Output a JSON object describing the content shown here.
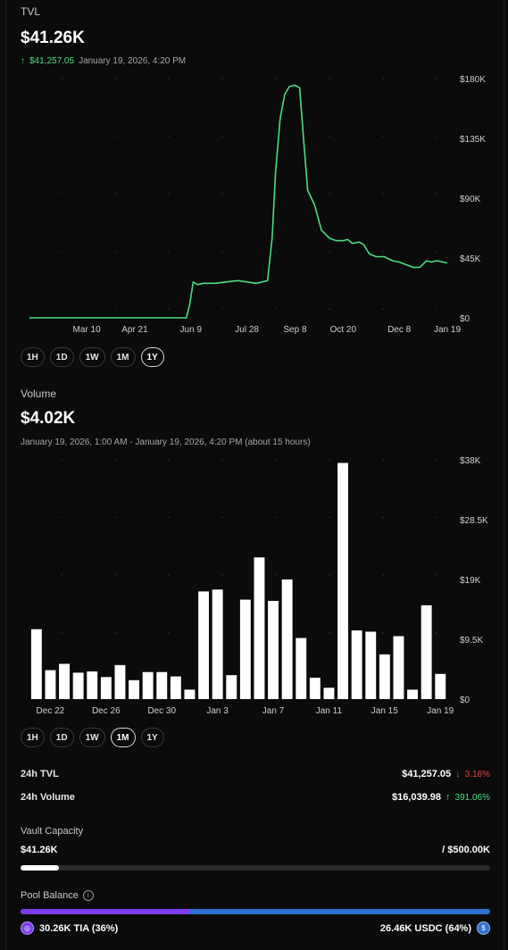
{
  "tvl": {
    "title": "TVL",
    "value": "$41.26K",
    "change_arrow": "↑",
    "change": "$41,257.05",
    "timestamp": "January 19, 2026, 4:20 PM"
  },
  "tvl_ranges": [
    {
      "label": "1H",
      "active": false
    },
    {
      "label": "1D",
      "active": false
    },
    {
      "label": "1W",
      "active": false
    },
    {
      "label": "1M",
      "active": false
    },
    {
      "label": "1Y",
      "active": true
    }
  ],
  "volume": {
    "title": "Volume",
    "value": "$4.02K",
    "period": "January 19, 2026, 1:00 AM - January 19, 2026, 4:20 PM (about 15 hours)"
  },
  "volume_ranges": [
    {
      "label": "1H",
      "active": false
    },
    {
      "label": "1D",
      "active": false
    },
    {
      "label": "1W",
      "active": false
    },
    {
      "label": "1M",
      "active": true
    },
    {
      "label": "1Y",
      "active": false
    }
  ],
  "stats": {
    "tvl_label": "24h TVL",
    "tvl_value": "$41,257.05",
    "tvl_change_arrow": "↓",
    "tvl_change": "3.16%",
    "volume_label": "24h Volume",
    "volume_value": "$16,039.98",
    "volume_change_arrow": "↑",
    "volume_change": "391.06%"
  },
  "capacity": {
    "title": "Vault Capacity",
    "current": "$41.26K",
    "max": "/ $500.00K",
    "fraction": 0.0825
  },
  "pool": {
    "title": "Pool Balance",
    "info_icon": "info-icon",
    "left_label": "30.26K TIA (36%)",
    "right_label": "26.46K USDC (64%)",
    "left_fraction": 0.36,
    "left_color": "#7c3aed",
    "right_color": "#2f6fce",
    "left_icon": "tia-token-icon",
    "right_icon": "usdc-token-icon"
  },
  "colors": {
    "accent_green": "#4ade80",
    "accent_red": "#ef4444",
    "line": "#4ade80",
    "bar": "#ffffff"
  },
  "chart_data": [
    {
      "type": "line",
      "title": "TVL",
      "x_ticks": [
        "Mar 10",
        "Apr 21",
        "Jun 9",
        "Jul 28",
        "Sep 8",
        "Oct 20",
        "Dec 8",
        "Jan 19"
      ],
      "y_ticks": [
        "$180K",
        "$135K",
        "$90K",
        "$45K",
        "$0"
      ],
      "ylim": [
        0,
        180000
      ],
      "y_tick_values": [
        180000,
        135000,
        90000,
        45000,
        0
      ],
      "series": [
        {
          "x": [
            "2025-01-19",
            "2025-02-10",
            "2025-03-10",
            "2025-04-01",
            "2025-04-21",
            "2025-05-15",
            "2025-06-05",
            "2025-06-08",
            "2025-06-11",
            "2025-06-15",
            "2025-06-20",
            "2025-06-30",
            "2025-07-10",
            "2025-07-20",
            "2025-07-28",
            "2025-08-05",
            "2025-08-15",
            "2025-08-19",
            "2025-08-22",
            "2025-08-26",
            "2025-08-30",
            "2025-09-03",
            "2025-09-08",
            "2025-09-12",
            "2025-09-15",
            "2025-09-19",
            "2025-09-25",
            "2025-10-01",
            "2025-10-08",
            "2025-10-14",
            "2025-10-20",
            "2025-10-24",
            "2025-10-28",
            "2025-11-03",
            "2025-11-07",
            "2025-11-12",
            "2025-11-18",
            "2025-11-25",
            "2025-12-02",
            "2025-12-08",
            "2025-12-14",
            "2025-12-20",
            "2025-12-26",
            "2026-01-01",
            "2026-01-05",
            "2026-01-10",
            "2026-01-15",
            "2026-01-19"
          ],
          "y": [
            0,
            0,
            0,
            0,
            0,
            0,
            0,
            10000,
            27000,
            25000,
            26000,
            26000,
            27000,
            28000,
            27000,
            26000,
            28000,
            60000,
            110000,
            150000,
            168000,
            174000,
            175000,
            173000,
            140000,
            96000,
            85000,
            66000,
            60000,
            58000,
            58000,
            59000,
            56000,
            57000,
            55000,
            48000,
            46000,
            46000,
            43000,
            42000,
            40000,
            38000,
            38000,
            43000,
            42000,
            43000,
            42000,
            41257
          ]
        }
      ],
      "grid": "dotted"
    },
    {
      "type": "bar",
      "title": "Volume",
      "x_ticks": [
        "Dec 22",
        "Dec 26",
        "Dec 30",
        "Jan 3",
        "Jan 7",
        "Jan 11",
        "Jan 15",
        "Jan 19"
      ],
      "y_ticks": [
        "$38K",
        "$28.5K",
        "$19K",
        "$9.5K",
        "$0"
      ],
      "ylim": [
        0,
        38000
      ],
      "y_tick_values": [
        38000,
        28500,
        19000,
        9500,
        0
      ],
      "categories": [
        "Dec 21",
        "Dec 22",
        "Dec 23",
        "Dec 24",
        "Dec 25",
        "Dec 26",
        "Dec 27",
        "Dec 28",
        "Dec 29",
        "Dec 30",
        "Dec 31",
        "Jan 1",
        "Jan 2",
        "Jan 3",
        "Jan 4",
        "Jan 5",
        "Jan 6",
        "Jan 7",
        "Jan 8",
        "Jan 9",
        "Jan 10",
        "Jan 11",
        "Jan 12",
        "Jan 13",
        "Jan 14",
        "Jan 15",
        "Jan 16",
        "Jan 17",
        "Jan 18",
        "Jan 19"
      ],
      "values": [
        11100,
        4600,
        5600,
        4200,
        4400,
        3500,
        5400,
        3000,
        4300,
        4300,
        3600,
        1500,
        17100,
        17400,
        3800,
        15800,
        22500,
        15600,
        19000,
        9700,
        3400,
        1800,
        37500,
        10900,
        10700,
        7100,
        10000,
        1500,
        14900,
        4000
      ],
      "grid": "dotted"
    }
  ]
}
